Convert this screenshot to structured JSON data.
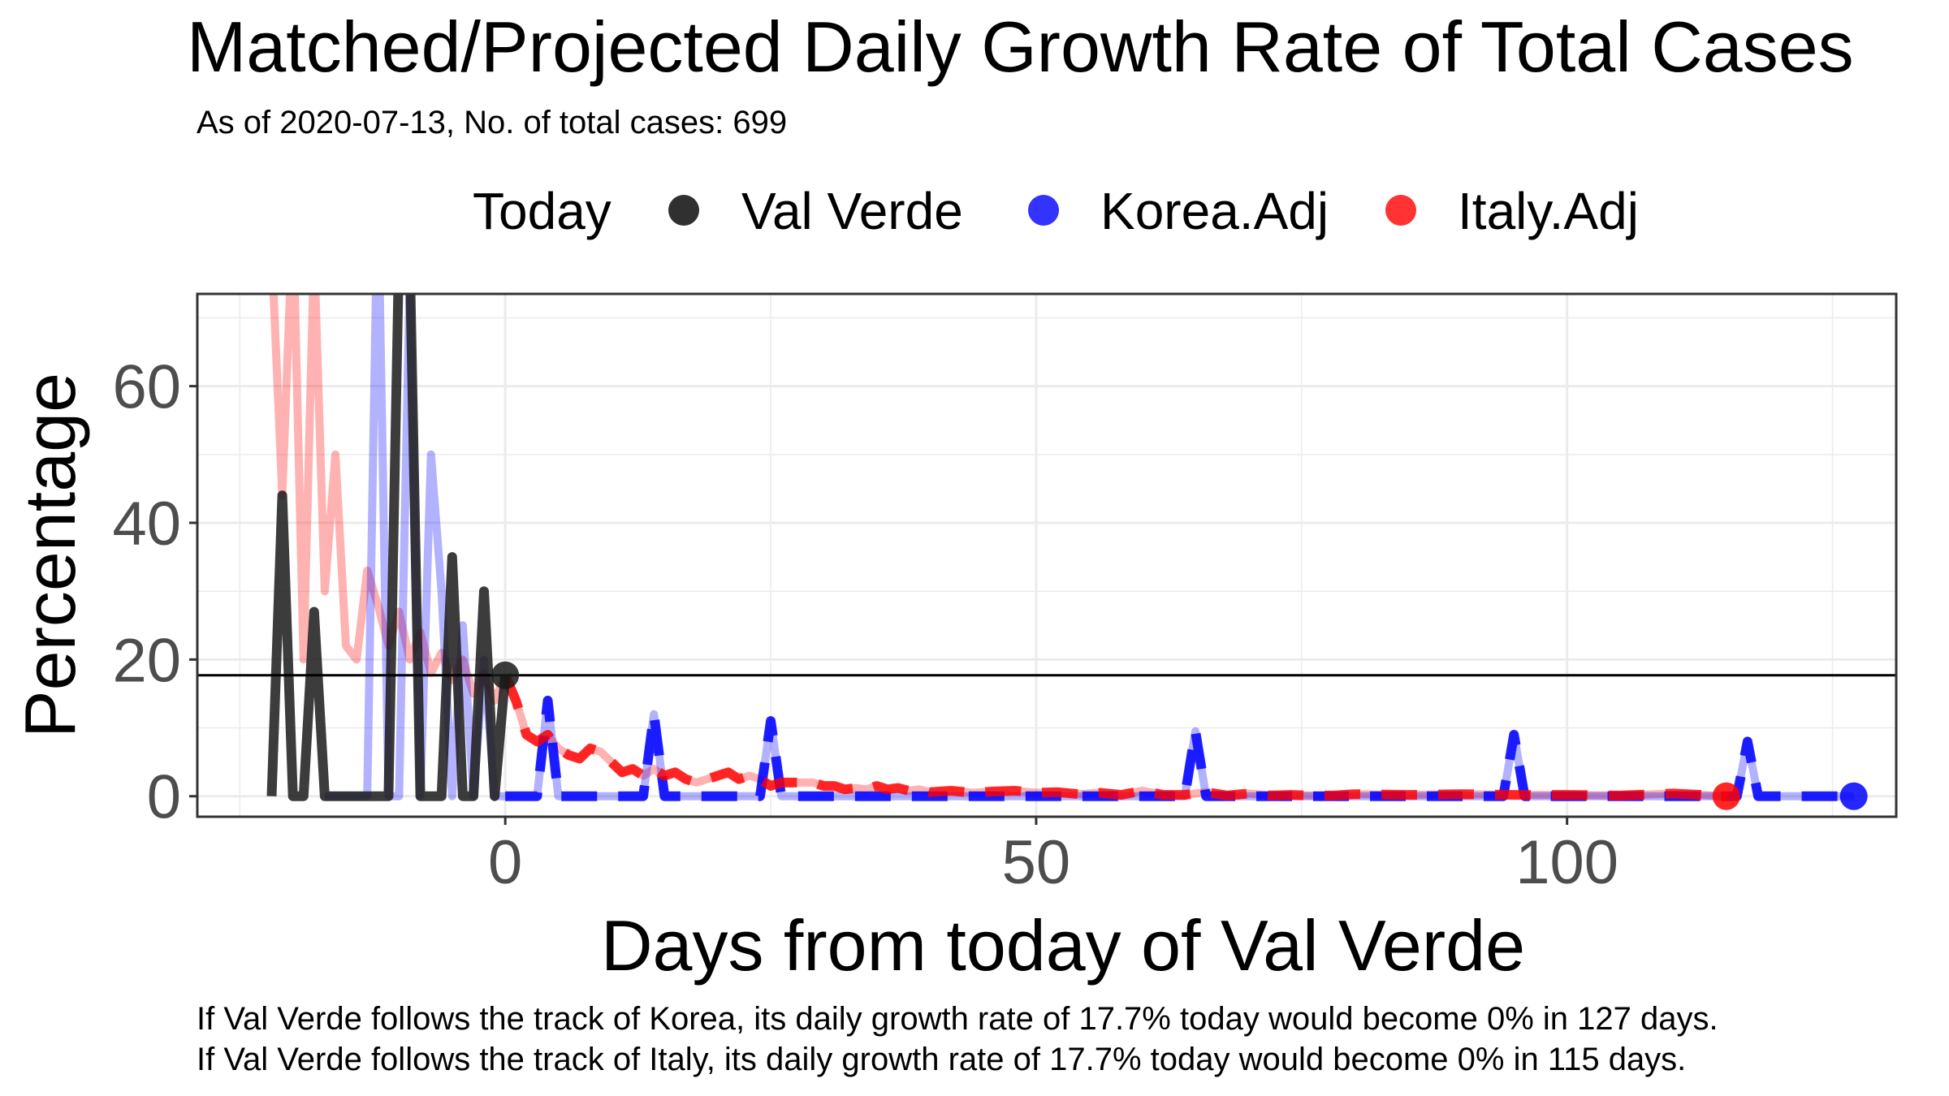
{
  "chart_data": {
    "type": "line",
    "title": "Matched/Projected Daily Growth Rate of Total Cases",
    "subtitle": "As of 2020-07-13, No. of total cases: 699",
    "xlabel": "Days from today of Val Verde",
    "ylabel": "Percentage",
    "xlim": [
      -29,
      131
    ],
    "ylim": [
      -3,
      73.5
    ],
    "x_ticks": [
      0,
      50,
      100
    ],
    "y_ticks": [
      0,
      20,
      40,
      60
    ],
    "grid": true,
    "legend": {
      "title": "Today",
      "position": "top",
      "entries": [
        {
          "name": "Val Verde",
          "color": "#1a1a1a"
        },
        {
          "name": "Korea.Adj",
          "color": "#0000ff"
        },
        {
          "name": "Italy.Adj",
          "color": "#ff0000"
        }
      ]
    },
    "hline": 17.7,
    "today_points": [
      {
        "series": "Val Verde",
        "x": 0,
        "y": 17.7
      },
      {
        "series": "Korea.Adj",
        "x": 127,
        "y": 0
      },
      {
        "series": "Italy.Adj",
        "x": 115,
        "y": 0
      }
    ],
    "series": [
      {
        "name": "Italy.Adj",
        "color": "#ff0000",
        "matched_x": [
          -22,
          -21,
          -20,
          -19,
          -18,
          -17,
          -16,
          -15,
          -14,
          -13,
          -12,
          -11,
          -10,
          -9,
          -8,
          -7,
          -6,
          -5,
          -4,
          -3,
          -2,
          -1,
          0
        ],
        "matched_y": [
          80,
          44,
          85,
          20,
          80,
          30,
          50,
          22,
          20,
          33,
          28,
          22,
          27,
          20,
          24,
          18,
          21,
          17,
          20,
          15,
          18,
          14,
          17.7
        ],
        "projected_x": [
          0,
          1,
          2,
          3,
          4,
          5,
          6,
          7,
          8,
          9,
          10,
          11,
          12,
          13,
          14,
          15,
          16,
          17,
          18,
          19,
          20,
          21,
          22,
          23,
          24,
          25,
          26,
          27,
          28,
          29,
          30,
          31,
          32,
          33,
          34,
          35,
          36,
          37,
          38,
          39,
          40,
          42,
          44,
          46,
          48,
          50,
          52,
          54,
          56,
          58,
          60,
          62,
          64,
          66,
          68,
          70,
          72,
          74,
          76,
          78,
          80,
          85,
          90,
          95,
          100,
          105,
          110,
          115
        ],
        "projected_y": [
          17.7,
          14,
          9,
          8,
          9,
          7,
          6,
          5.5,
          7,
          6.5,
          5,
          3.5,
          4,
          3,
          4,
          3,
          3.5,
          2.5,
          2,
          2.5,
          3,
          3.5,
          2.5,
          3,
          2.5,
          1.5,
          2,
          2,
          2,
          2,
          1.5,
          1.5,
          1,
          1.2,
          1,
          1.5,
          1,
          1.2,
          0.8,
          1,
          0.6,
          0.8,
          0.5,
          0.7,
          0.8,
          0.5,
          0.6,
          0.3,
          0.5,
          0.2,
          0.8,
          0.2,
          0.2,
          0.6,
          0.1,
          0.4,
          0.1,
          0.2,
          0.1,
          0.1,
          0.3,
          0.2,
          0.3,
          0.2,
          0.2,
          0.1,
          0.4,
          0
        ]
      },
      {
        "name": "Korea.Adj",
        "color": "#0000ff",
        "matched_x": [
          -17,
          -16,
          -15,
          -14,
          -13,
          -12,
          -11,
          -10,
          -9,
          -8,
          -7,
          -6,
          -5,
          -4,
          -3,
          -2,
          -1,
          0
        ],
        "matched_y": [
          0,
          0,
          0,
          0,
          0,
          90,
          0,
          0,
          75,
          0,
          50,
          30,
          0,
          25,
          0,
          20,
          0,
          0
        ],
        "projected_x": [
          0,
          1,
          2,
          3,
          4,
          5,
          6,
          7,
          8,
          9,
          10,
          11,
          12,
          13,
          14,
          15,
          16,
          17,
          18,
          19,
          20,
          21,
          22,
          23,
          24,
          25,
          26,
          27,
          28,
          29,
          30,
          35,
          40,
          45,
          50,
          55,
          60,
          63,
          64,
          65,
          66,
          67,
          70,
          75,
          80,
          85,
          90,
          93,
          94,
          95,
          96,
          97,
          100,
          105,
          110,
          113,
          114,
          115,
          116,
          117,
          118,
          120,
          124,
          127
        ],
        "projected_y": [
          0,
          0,
          0,
          0,
          14,
          0,
          0,
          0,
          0,
          0,
          0,
          0,
          0,
          0,
          12,
          0,
          0,
          0,
          0,
          0,
          0,
          0,
          0,
          0,
          0,
          11,
          0,
          0,
          0,
          0,
          0,
          0,
          0,
          0,
          0,
          0,
          0,
          0,
          0,
          9.5,
          0,
          0,
          0,
          0,
          0,
          0,
          0,
          0,
          0,
          9,
          0,
          0,
          0,
          0,
          0,
          0,
          0,
          0,
          0,
          8,
          0,
          0,
          0,
          0
        ]
      },
      {
        "name": "Val Verde",
        "color": "#1a1a1a",
        "x": [
          -22,
          -21,
          -20,
          -19,
          -18,
          -17,
          -16,
          -15,
          -14,
          -13,
          -12,
          -11,
          -10,
          -9,
          -8,
          -7,
          -6,
          -5,
          -4,
          -3,
          -2,
          -1,
          0
        ],
        "y": [
          0,
          44,
          0,
          0,
          27,
          0,
          0,
          0,
          0,
          0,
          0,
          0,
          80,
          80,
          0,
          0,
          0,
          35,
          0,
          0,
          30,
          0,
          17.7
        ]
      }
    ]
  },
  "caption": {
    "line1": "If Val Verde follows the track of Korea, its daily growth rate of 17.7% today would become 0% in 127 days.",
    "line2": "If Val Verde follows the track of Italy, its daily growth rate of 17.7% today would become 0% in 115 days."
  }
}
